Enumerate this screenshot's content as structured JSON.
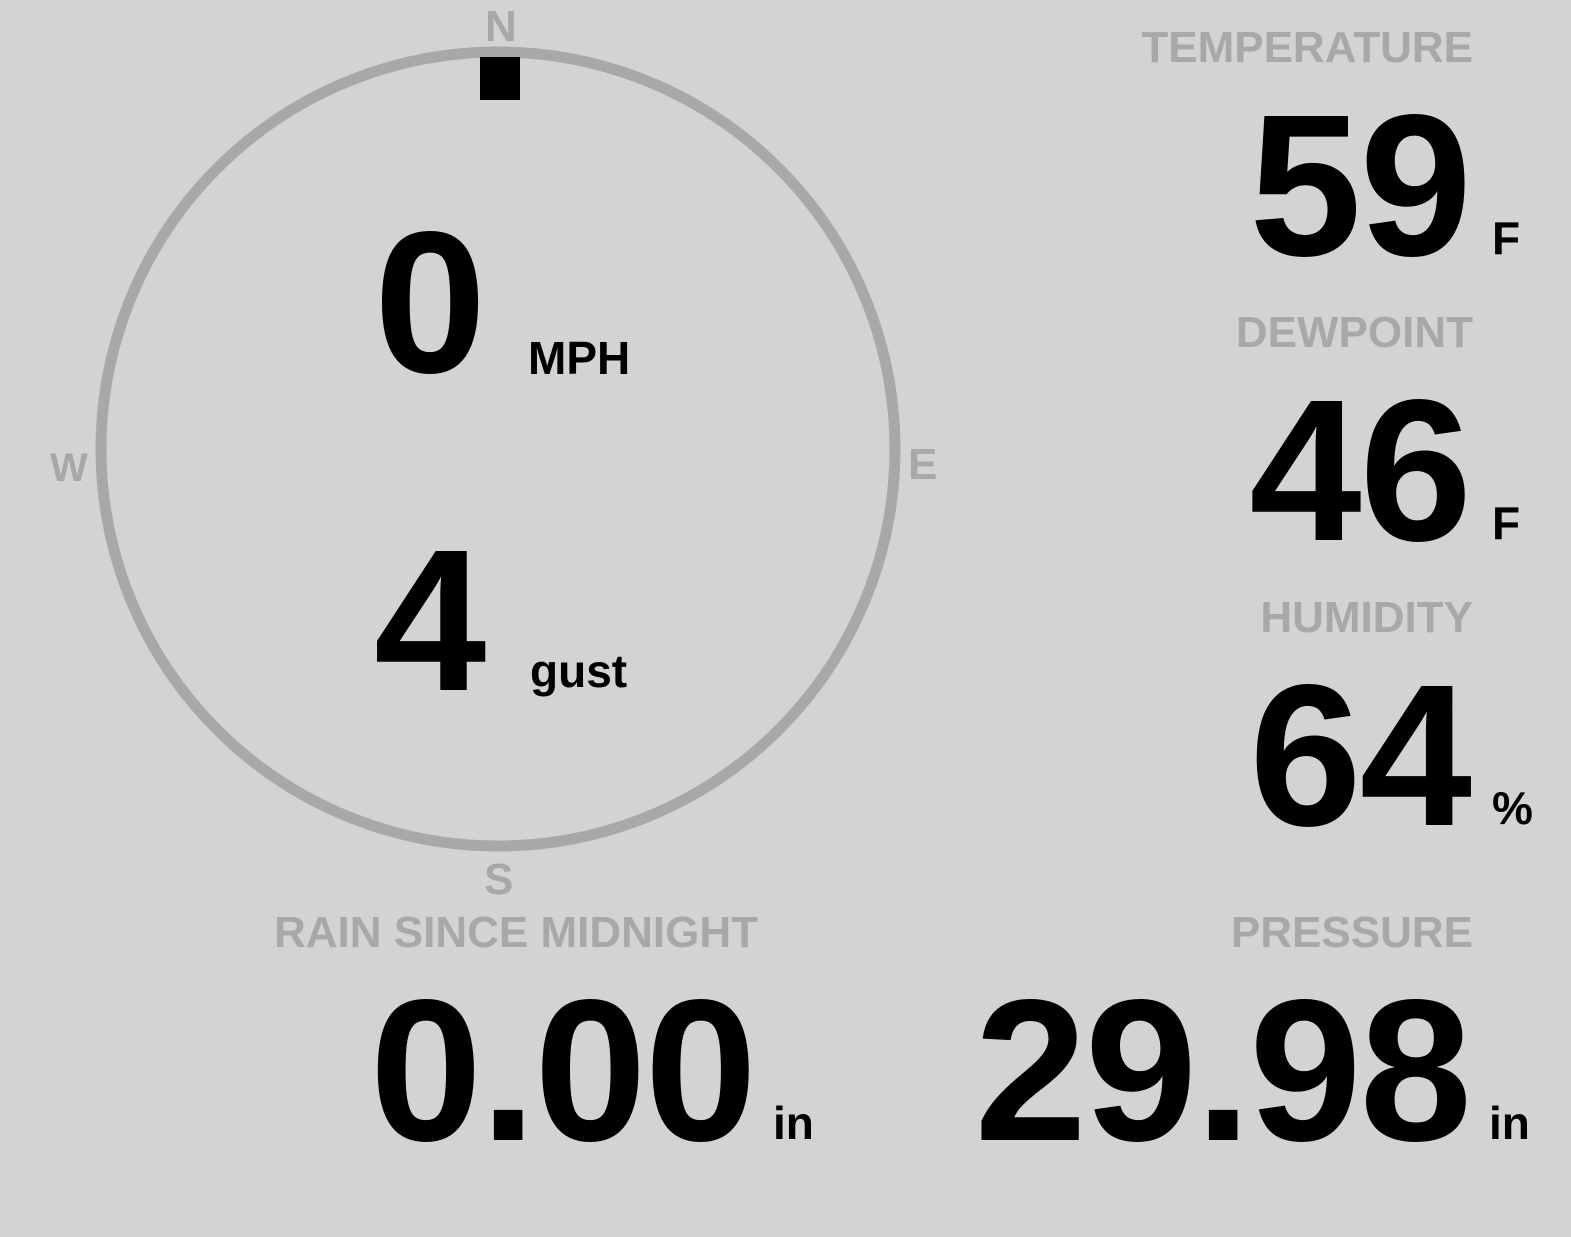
{
  "wind": {
    "speed": "0",
    "speed_unit": "MPH",
    "gust": "4",
    "gust_unit": "gust",
    "direction_deg": 0,
    "compass": {
      "n": "N",
      "e": "E",
      "s": "S",
      "w": "W"
    }
  },
  "temperature": {
    "label": "TEMPERATURE",
    "value": "59",
    "unit": "F"
  },
  "dewpoint": {
    "label": "DEWPOINT",
    "value": "46",
    "unit": "F"
  },
  "humidity": {
    "label": "HUMIDITY",
    "value": "64",
    "unit": "%"
  },
  "rain": {
    "label": "RAIN SINCE MIDNIGHT",
    "value": "0.00",
    "unit": "in"
  },
  "pressure": {
    "label": "PRESSURE",
    "value": "29.98",
    "unit": "in"
  },
  "colors": {
    "background": "#d3d3d3",
    "label": "#a8a8a8",
    "value": "#000000",
    "dial": "#a8a8a8"
  }
}
